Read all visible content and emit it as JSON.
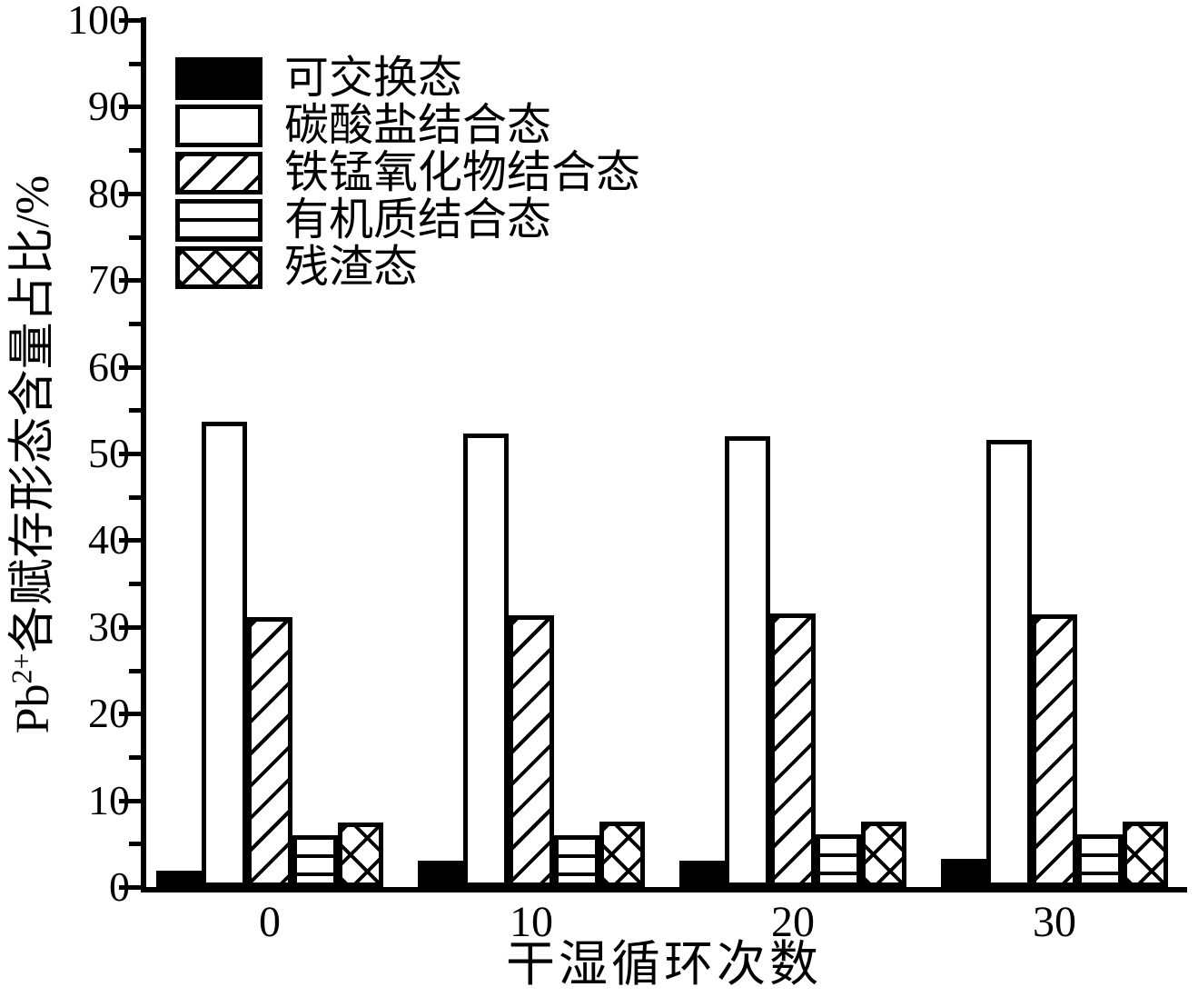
{
  "chart_data": {
    "type": "bar",
    "title": "",
    "xlabel": "干湿循环次数",
    "ylabel": "Pb2+各赋存形态含量占比/%",
    "ylabel_prefix": "Pb",
    "ylabel_sup": "2+",
    "ylabel_main": "各赋存形态含量占比/%",
    "categories": [
      "0",
      "10",
      "20",
      "30"
    ],
    "series": [
      {
        "name": "可交换态",
        "pattern": "solid-black",
        "values": [
          1.9,
          3.0,
          3.0,
          3.3
        ]
      },
      {
        "name": "碳酸盐结合态",
        "pattern": "white",
        "values": [
          53.7,
          52.3,
          52.0,
          51.6
        ]
      },
      {
        "name": "铁锰氧化物结合态",
        "pattern": "diagonal",
        "values": [
          31.1,
          31.3,
          31.5,
          31.4
        ]
      },
      {
        "name": "有机质结合态",
        "pattern": "horizontal",
        "values": [
          6.0,
          6.0,
          6.1,
          6.1
        ]
      },
      {
        "name": "残渣态",
        "pattern": "crosshatch",
        "values": [
          7.4,
          7.5,
          7.5,
          7.5
        ]
      }
    ],
    "ylim": [
      0,
      100
    ],
    "ytick_step": 10,
    "yminor_step": 5,
    "ytick_labels": [
      "0",
      "10",
      "20",
      "30",
      "40",
      "50",
      "60",
      "70",
      "80",
      "90",
      "100"
    ],
    "grid": false,
    "legend_position": "top-left",
    "colors": {
      "foreground": "#000000",
      "background": "#ffffff"
    }
  }
}
